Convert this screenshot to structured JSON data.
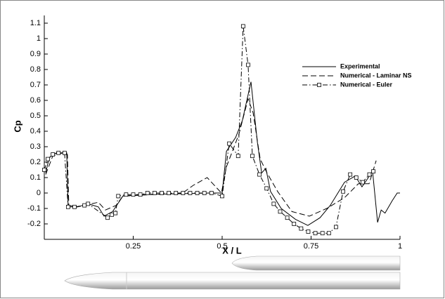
{
  "chart_data": {
    "type": "line",
    "xlabel": "X / L",
    "ylabel": "Cp",
    "xlim": [
      0,
      1
    ],
    "ylim": [
      -0.3,
      1.15
    ],
    "xticks": [
      0.25,
      0.5,
      0.75,
      1
    ],
    "yticks": [
      -0.2,
      -0.1,
      0,
      0.1,
      0.2,
      0.3,
      0.4,
      0.5,
      0.6,
      0.7,
      0.8,
      0.9,
      1,
      1.1
    ],
    "series": [
      {
        "name": "Experimental",
        "color": "#000000",
        "dash": "solid",
        "x": [
          0.004,
          0.014,
          0.034,
          0.053,
          0.063,
          0.067,
          0.093,
          0.123,
          0.152,
          0.168,
          0.192,
          0.221,
          0.271,
          0.468,
          0.5,
          0.512,
          0.538,
          0.557,
          0.581,
          0.599,
          0.611,
          0.623,
          0.636,
          0.666,
          0.706,
          0.741,
          0.775,
          0.804,
          0.844,
          0.874,
          0.893,
          0.923,
          0.937,
          0.947,
          0.958,
          0.978,
          0.992,
          1.0
        ],
        "values": [
          0.13,
          0.23,
          0.26,
          0.26,
          0.26,
          -0.09,
          -0.09,
          -0.07,
          -0.09,
          -0.15,
          -0.12,
          -0.02,
          -0.01,
          0,
          0,
          0.27,
          0.36,
          0.47,
          0.72,
          0.33,
          0.13,
          0.16,
          0.01,
          -0.1,
          -0.17,
          -0.21,
          -0.16,
          -0.08,
          0.07,
          0.11,
          0.04,
          0.14,
          -0.19,
          -0.11,
          -0.13,
          -0.05,
          0.0,
          0.0
        ]
      },
      {
        "name": "Numerical - Laminar NS",
        "color": "#000000",
        "dash": "dashed",
        "x": [
          0.004,
          0.024,
          0.053,
          0.065,
          0.069,
          0.093,
          0.152,
          0.172,
          0.202,
          0.221,
          0.389,
          0.419,
          0.458,
          0.498,
          0.512,
          0.547,
          0.573,
          0.587,
          0.607,
          0.626,
          0.656,
          0.696,
          0.745,
          0.794,
          0.844,
          0.883,
          0.913,
          0.933
        ],
        "values": [
          0.12,
          0.24,
          0.26,
          0.25,
          -0.08,
          -0.09,
          -0.06,
          -0.11,
          -0.08,
          -0.02,
          0,
          0.05,
          0.1,
          0,
          0.17,
          0.38,
          0.61,
          0.52,
          0.22,
          0.13,
          0.01,
          -0.12,
          -0.15,
          -0.1,
          -0.03,
          0.06,
          0.06,
          0.21
        ]
      },
      {
        "name": "Numerical - Euler",
        "color": "#000000",
        "dash": "dashdot",
        "marker": "square",
        "x": [
          0.0,
          0.01,
          0.024,
          0.04,
          0.057,
          0.067,
          0.085,
          0.113,
          0.123,
          0.178,
          0.19,
          0.2,
          0.208,
          0.23,
          0.25,
          0.27,
          0.29,
          0.31,
          0.33,
          0.35,
          0.37,
          0.39,
          0.41,
          0.43,
          0.45,
          0.47,
          0.5,
          0.52,
          0.545,
          0.559,
          0.573,
          0.585,
          0.605,
          0.625,
          0.645,
          0.663,
          0.683,
          0.702,
          0.722,
          0.742,
          0.762,
          0.782,
          0.8,
          0.82,
          0.84,
          0.86,
          0.877,
          0.895,
          0.914,
          0.925
        ],
        "values": [
          0.15,
          0.22,
          0.25,
          0.26,
          0.26,
          -0.09,
          -0.09,
          -0.08,
          -0.07,
          -0.16,
          -0.14,
          -0.13,
          -0.02,
          -0.01,
          -0.01,
          -0.01,
          0,
          0,
          0,
          0,
          0,
          0,
          0,
          0,
          0,
          0,
          -0.02,
          0.32,
          0.24,
          1.08,
          0.83,
          0.24,
          0.12,
          0.03,
          -0.07,
          -0.12,
          -0.16,
          -0.2,
          -0.23,
          -0.25,
          -0.26,
          -0.26,
          -0.26,
          -0.22,
          0.01,
          0.12,
          0.1,
          0.07,
          0.12,
          0.14
        ]
      }
    ]
  }
}
